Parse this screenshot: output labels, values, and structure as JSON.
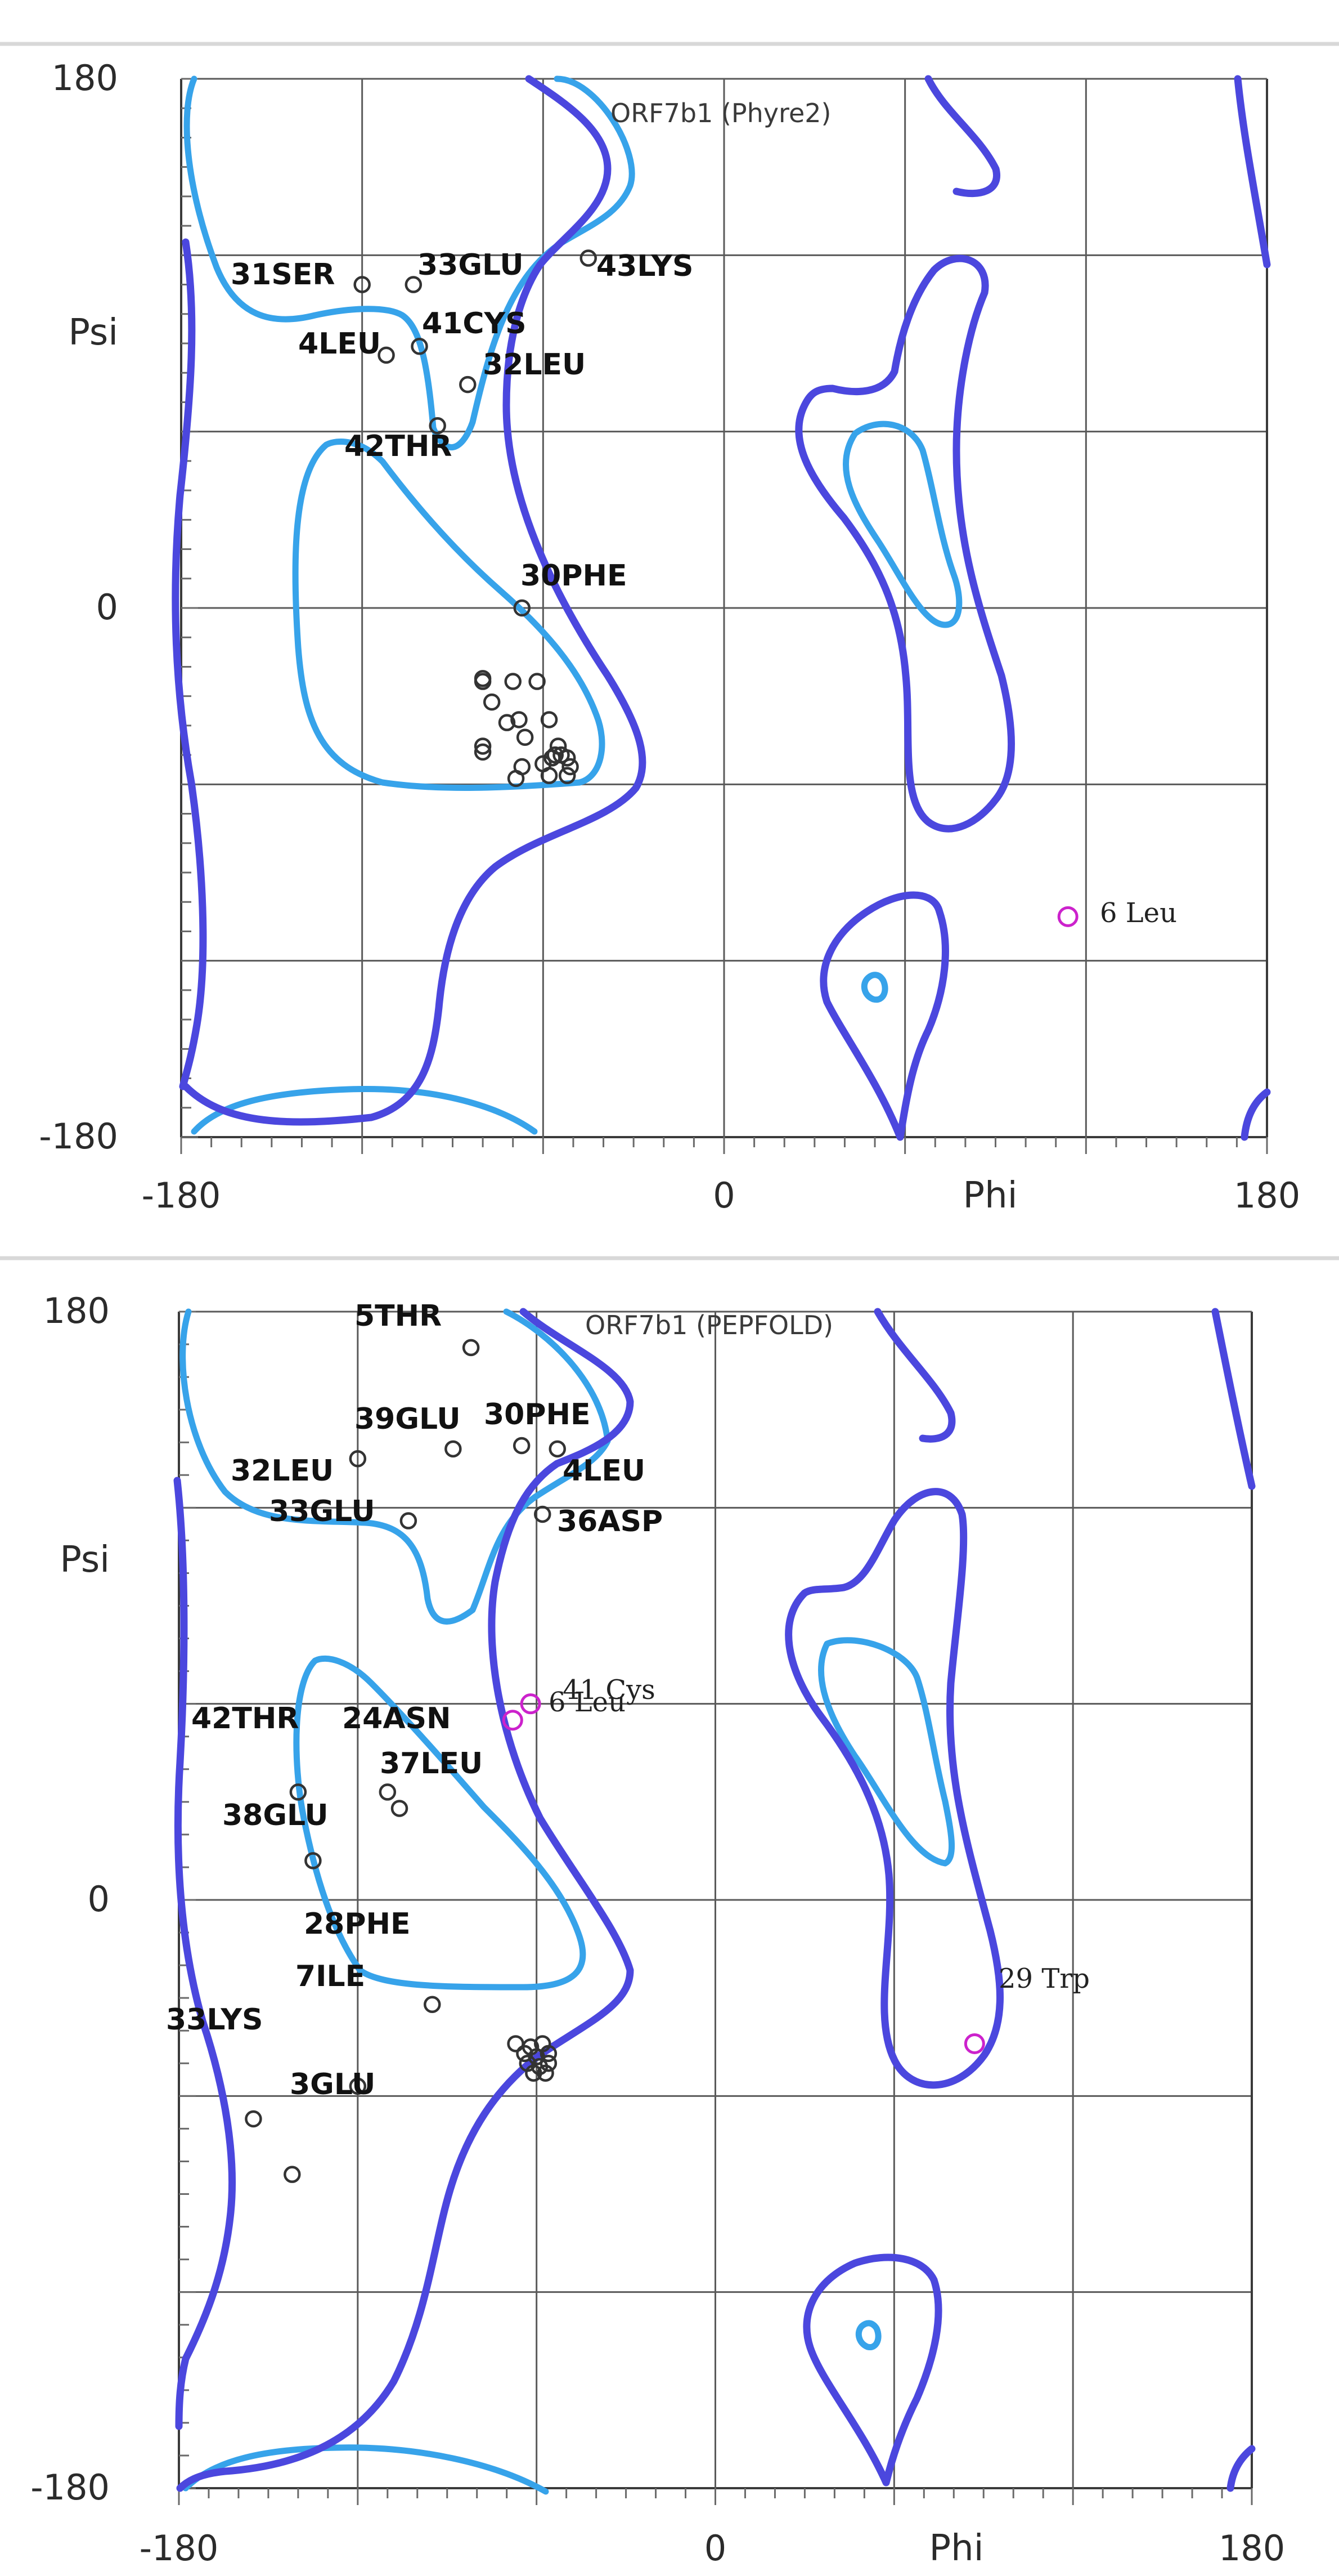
{
  "colors": {
    "favored_region": "#37a3ea",
    "allowed_region": "#4b47de",
    "residue_point": "#333333",
    "outlier_point": "#cc22cc",
    "grid": "#5a5a5a"
  },
  "chart_data": [
    {
      "type": "scatter",
      "title": "ORF7b1 (Phyre2)",
      "xlabel": "Phi",
      "ylabel": "Psi",
      "xlim": [
        -180,
        180
      ],
      "ylim": [
        -180,
        180
      ],
      "x_ticks": [
        "-180",
        "0",
        "Phi",
        "180"
      ],
      "y_ticks": [
        "180",
        "Psi",
        "0",
        "-180"
      ],
      "grid": true,
      "labeled_points": [
        {
          "label": "31SER",
          "phi": -120,
          "psi": 110,
          "outlier": false
        },
        {
          "label": "33GLU",
          "phi": -103,
          "psi": 110,
          "outlier": false
        },
        {
          "label": "43LYS",
          "phi": -45,
          "psi": 119,
          "outlier": false
        },
        {
          "label": "4LEU",
          "phi": -112,
          "psi": 86,
          "outlier": false
        },
        {
          "label": "41CYS",
          "phi": -101,
          "psi": 89,
          "outlier": false
        },
        {
          "label": "32LEU",
          "phi": -85,
          "psi": 76,
          "outlier": false
        },
        {
          "label": "42THR",
          "phi": -95,
          "psi": 62,
          "outlier": false
        },
        {
          "label": "30PHE",
          "phi": -67,
          "psi": 0,
          "outlier": false
        },
        {
          "label": "6 Leu",
          "phi": 114,
          "psi": -105,
          "outlier": true
        }
      ],
      "unlabeled_points": [
        {
          "phi": -80,
          "psi": -24
        },
        {
          "phi": -80,
          "psi": -25
        },
        {
          "phi": -77,
          "psi": -32
        },
        {
          "phi": -70,
          "psi": -25
        },
        {
          "phi": -62,
          "psi": -25
        },
        {
          "phi": -68,
          "psi": -38
        },
        {
          "phi": -72,
          "psi": -39
        },
        {
          "phi": -58,
          "psi": -38
        },
        {
          "phi": -66,
          "psi": -44
        },
        {
          "phi": -80,
          "psi": -47
        },
        {
          "phi": -80,
          "psi": -49
        },
        {
          "phi": -55,
          "psi": -47
        },
        {
          "phi": -57,
          "psi": -51
        },
        {
          "phi": -52,
          "psi": -51
        },
        {
          "phi": -54,
          "psi": -50
        },
        {
          "phi": -56,
          "psi": -50
        },
        {
          "phi": -60,
          "psi": -53
        },
        {
          "phi": -67,
          "psi": -54
        },
        {
          "phi": -58,
          "psi": -57
        },
        {
          "phi": -51,
          "psi": -54
        },
        {
          "phi": -69,
          "psi": -58
        },
        {
          "phi": -52,
          "psi": -57
        }
      ]
    },
    {
      "type": "scatter",
      "title": "ORF7b1 (PEPFOLD)",
      "xlabel": "Phi",
      "ylabel": "Psi",
      "xlim": [
        -180,
        180
      ],
      "ylim": [
        -180,
        180
      ],
      "x_ticks": [
        "-180",
        "0",
        "Phi",
        "180"
      ],
      "y_ticks": [
        "180",
        "Psi",
        "0",
        "-180"
      ],
      "grid": true,
      "labeled_points": [
        {
          "label": "5THR",
          "phi": -82,
          "psi": 169,
          "outlier": false
        },
        {
          "label": "39GLU",
          "phi": -88,
          "psi": 138,
          "outlier": false
        },
        {
          "label": "30PHE",
          "phi": -65,
          "psi": 139,
          "outlier": false
        },
        {
          "label": "32LEU",
          "phi": -120,
          "psi": 135,
          "outlier": false
        },
        {
          "label": "4LEU",
          "phi": -53,
          "psi": 138,
          "outlier": false
        },
        {
          "label": "33GLU",
          "phi": -103,
          "psi": 116,
          "outlier": false
        },
        {
          "label": "36ASP",
          "phi": -58,
          "psi": 118,
          "outlier": false
        },
        {
          "label": "41 Cys",
          "phi": -62,
          "psi": 60,
          "outlier": true
        },
        {
          "label": "6 Leu",
          "phi": -68,
          "psi": 55,
          "outlier": true
        },
        {
          "label": "42THR",
          "phi": -140,
          "psi": 33,
          "outlier": false
        },
        {
          "label": "24ASN",
          "phi": -110,
          "psi": 33,
          "outlier": false
        },
        {
          "label": "37LEU",
          "phi": -106,
          "psi": 28,
          "outlier": false
        },
        {
          "label": "38GLU",
          "phi": -135,
          "psi": 12,
          "outlier": false
        },
        {
          "label": "28PHE",
          "phi": -95,
          "psi": -32,
          "outlier": false
        },
        {
          "label": "29 Trp",
          "phi": 87,
          "psi": -44,
          "outlier": true
        },
        {
          "label": "7ILE",
          "phi": -120,
          "psi": -57,
          "outlier": false
        },
        {
          "label": "33LYS",
          "phi": -155,
          "psi": -67,
          "outlier": false
        },
        {
          "label": "3GLU",
          "phi": -142,
          "psi": -84,
          "outlier": false
        }
      ],
      "unlabeled_points": [
        {
          "phi": -67,
          "psi": -44
        },
        {
          "phi": -62,
          "psi": -45
        },
        {
          "phi": -58,
          "psi": -44
        },
        {
          "phi": -64,
          "psi": -47
        },
        {
          "phi": -60,
          "psi": -48
        },
        {
          "phi": -56,
          "psi": -47
        },
        {
          "phi": -63,
          "psi": -50
        },
        {
          "phi": -59,
          "psi": -51
        },
        {
          "phi": -56,
          "psi": -50
        },
        {
          "phi": -61,
          "psi": -53
        },
        {
          "phi": -57,
          "psi": -53
        }
      ]
    }
  ]
}
